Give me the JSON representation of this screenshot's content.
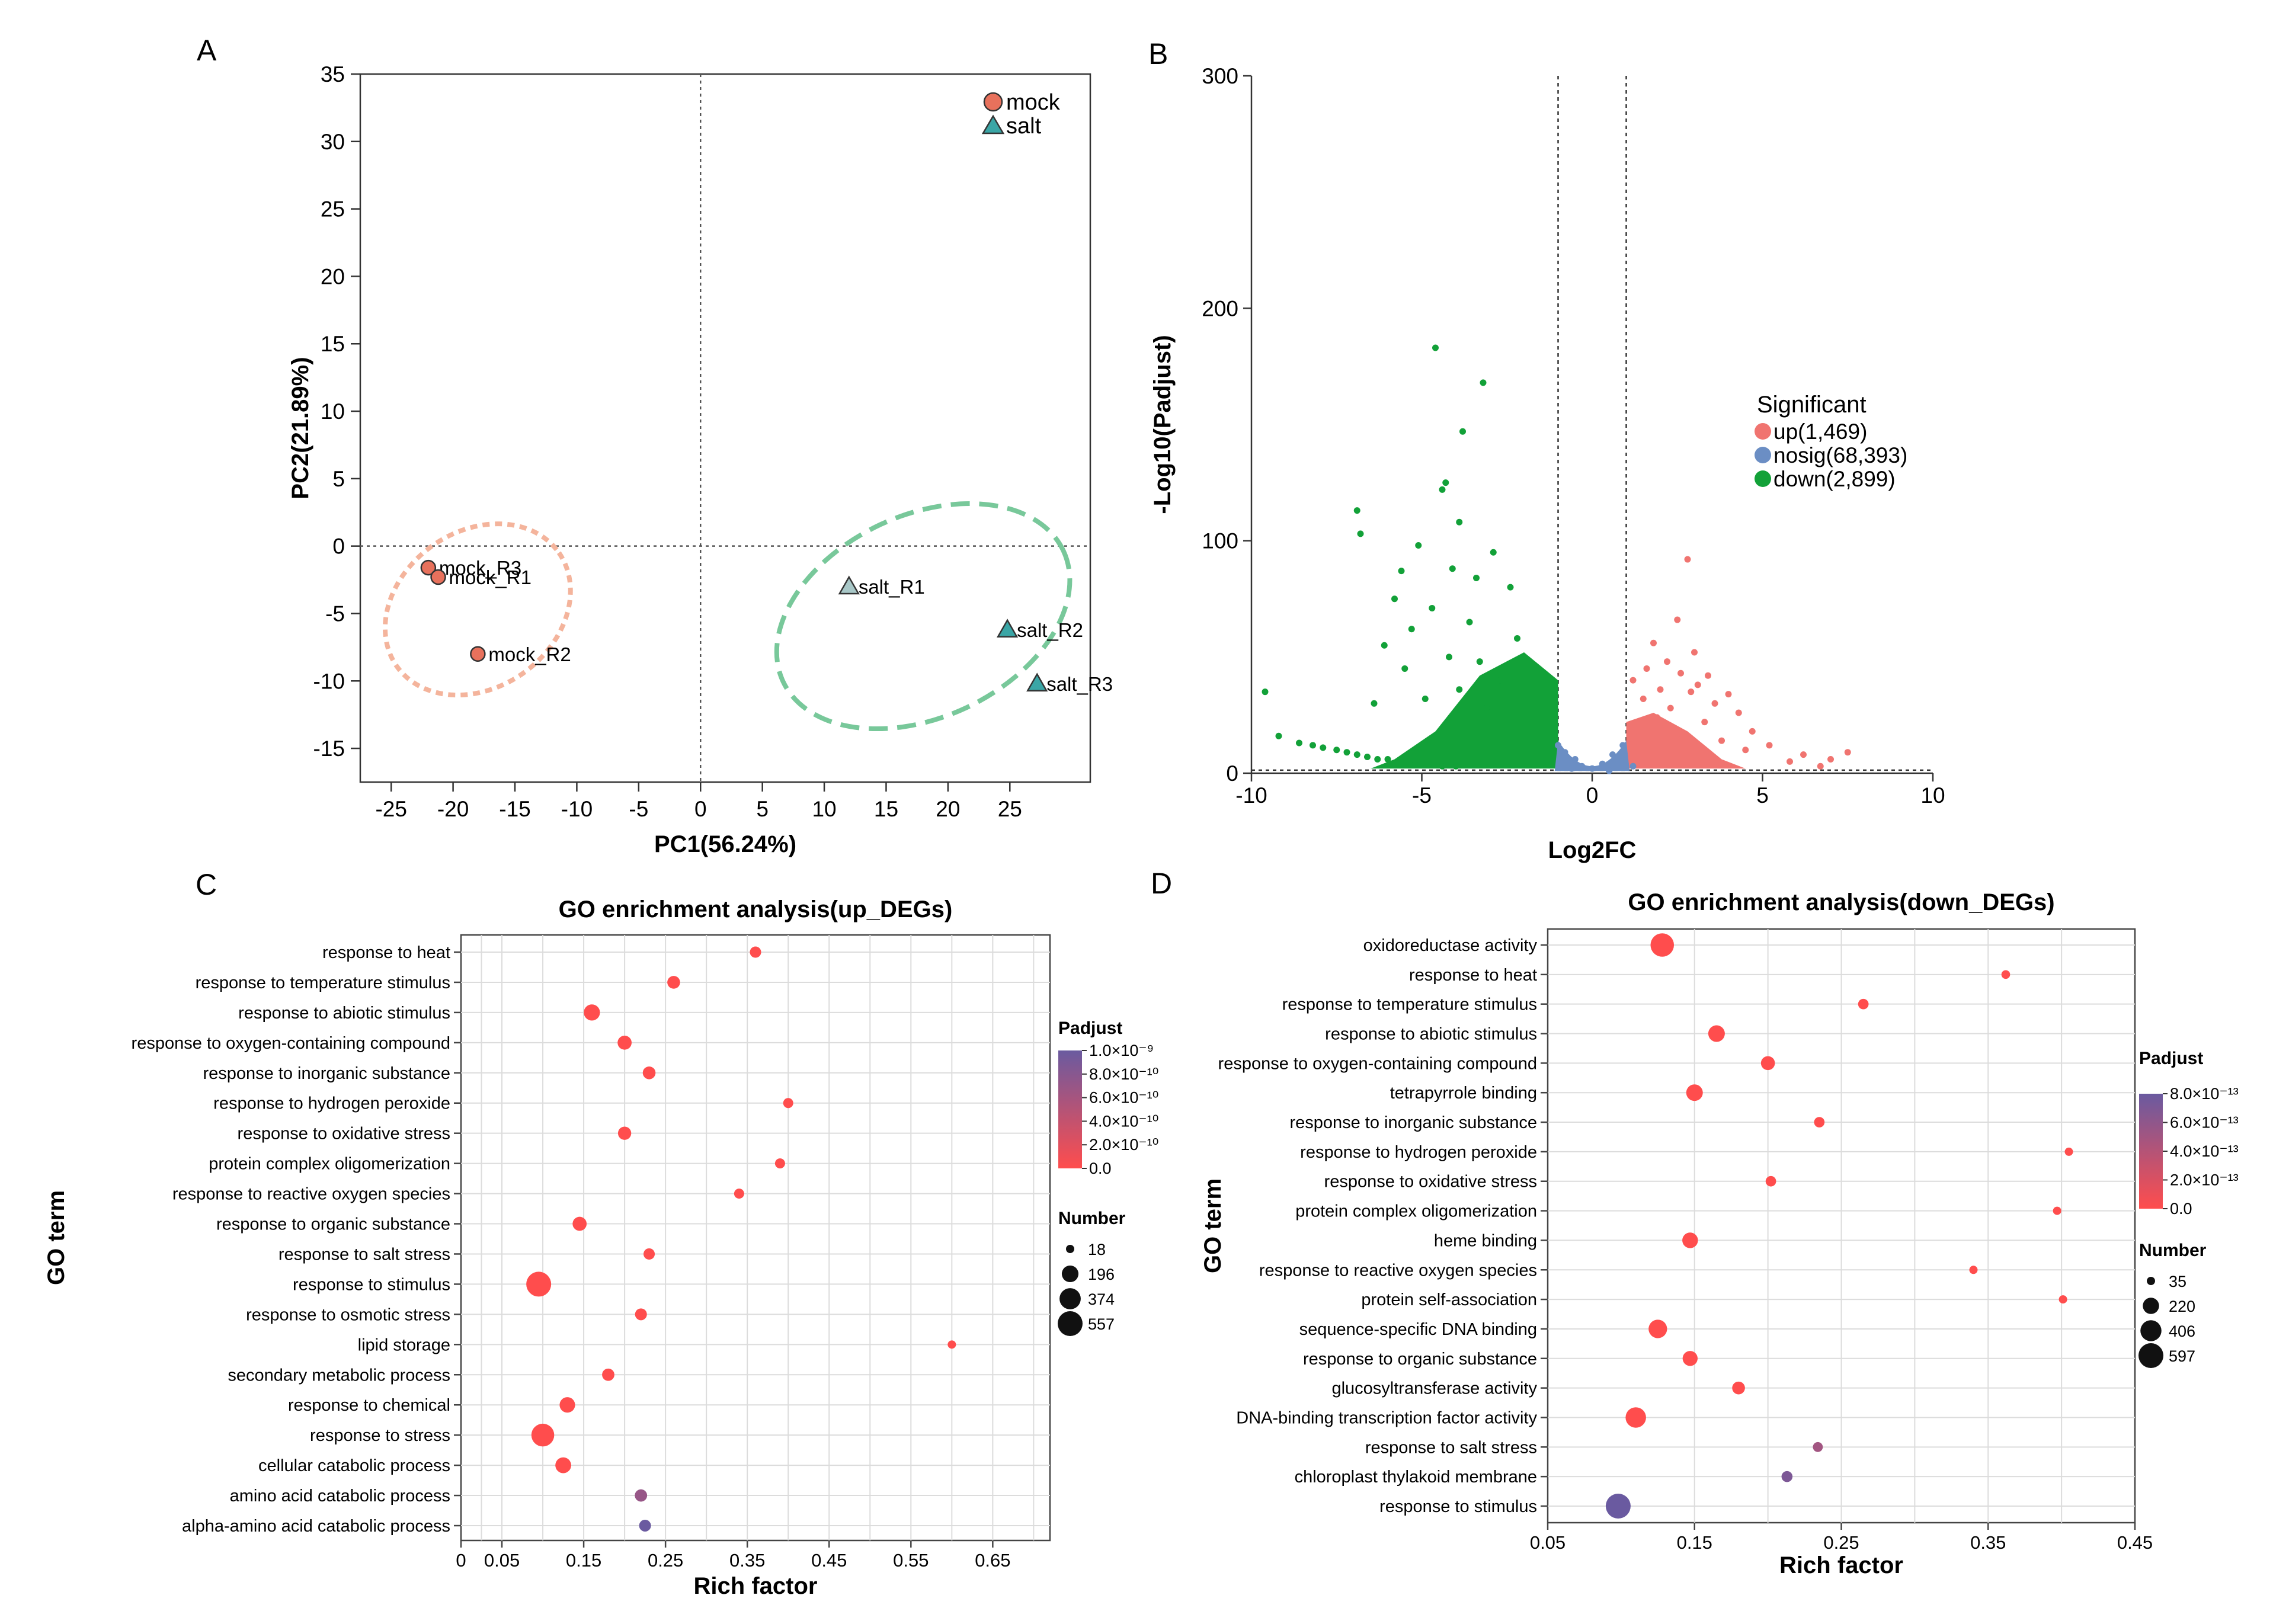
{
  "panel_letters": [
    "A",
    "B",
    "C",
    "D"
  ],
  "chart_data": [
    {
      "panel": "A",
      "type": "scatter",
      "title": "",
      "xlabel": "PC1(56.24%)",
      "ylabel": "PC2(21.89%)",
      "xlim": [
        -27.5,
        31.5
      ],
      "ylim": [
        -17.5,
        35
      ],
      "xticks": [
        -25,
        -20,
        -15,
        -10,
        -5,
        0,
        5,
        10,
        15,
        20,
        25
      ],
      "yticks": [
        35,
        30,
        25,
        20,
        15,
        10,
        5,
        0,
        -5,
        -10,
        -15
      ],
      "reference_lines": {
        "x": 0,
        "y": 0
      },
      "legend": [
        {
          "label": "mock",
          "shape": "circle",
          "color": "#e8715c"
        },
        {
          "label": "salt",
          "shape": "triangle",
          "color": "#3aa6a6"
        }
      ],
      "series": [
        {
          "name": "mock",
          "shape": "circle",
          "color": "#e8715c",
          "points": [
            {
              "label": "mock_R3",
              "x": -22,
              "y": -1.6
            },
            {
              "label": "mock_R1",
              "x": -21.2,
              "y": -2.3
            },
            {
              "label": "mock_R2",
              "x": -18,
              "y": -8
            }
          ]
        },
        {
          "name": "salt",
          "shape": "triangle",
          "color": "#3aa6a6",
          "points": [
            {
              "label": "salt_R1",
              "x": 12,
              "y": -3,
              "fill": "#a9c8c8"
            },
            {
              "label": "salt_R2",
              "x": 24.8,
              "y": -6.2
            },
            {
              "label": "salt_R3",
              "x": 27.2,
              "y": -10.2
            }
          ]
        }
      ],
      "ellipses": [
        {
          "group": "mock",
          "color": "#f4b49c",
          "center": [
            -18,
            -4.7
          ],
          "rx_units": 8,
          "ry_units": 5.8
        },
        {
          "group": "salt",
          "color": "#78c89a",
          "center": [
            18,
            -5.2
          ],
          "rx_units": 12.5,
          "ry_units": 7.5
        }
      ]
    },
    {
      "panel": "B",
      "type": "scatter",
      "title": "",
      "xlabel": "Log2FC",
      "ylabel": "-Log10(Padjust)",
      "xlim": [
        -10,
        10
      ],
      "ylim": [
        0,
        300
      ],
      "xticks": [
        -10,
        -5,
        0,
        5,
        10
      ],
      "yticks": [
        0,
        100,
        200,
        300
      ],
      "thresholds": {
        "log2fc": [
          -1,
          1
        ],
        "padj_line": 1.3
      },
      "legend_title": "Significant",
      "legend": [
        {
          "label": "up(1,469)",
          "color": "#f07470"
        },
        {
          "label": "nosig(68,393)",
          "color": "#6b8ec4"
        },
        {
          "label": "down(2,899)",
          "color": "#12a138"
        }
      ],
      "series": [
        {
          "name": "up",
          "color": "#f07470",
          "points": [
            [
              2.8,
              92
            ],
            [
              2.5,
              66
            ],
            [
              1.8,
              56
            ],
            [
              3,
              52
            ],
            [
              2.2,
              48
            ],
            [
              1.6,
              45
            ],
            [
              2.6,
              43
            ],
            [
              3.4,
              42
            ],
            [
              1.2,
              40
            ],
            [
              3.1,
              38
            ],
            [
              2,
              36
            ],
            [
              2.9,
              35
            ],
            [
              4,
              34
            ],
            [
              1.5,
              32
            ],
            [
              3.6,
              30
            ],
            [
              2.3,
              28
            ],
            [
              4.3,
              26
            ],
            [
              1.9,
              24
            ],
            [
              3.3,
              22
            ],
            [
              4.7,
              18
            ],
            [
              2.6,
              17
            ],
            [
              3.8,
              14
            ],
            [
              5.2,
              12
            ],
            [
              4.5,
              10
            ],
            [
              6.2,
              8
            ],
            [
              5.8,
              5
            ],
            [
              6.7,
              3
            ],
            [
              7.5,
              9
            ],
            [
              7,
              6
            ]
          ]
        },
        {
          "name": "down",
          "color": "#12a138",
          "points": [
            [
              -4.6,
              183
            ],
            [
              -3.2,
              168
            ],
            [
              -3.8,
              147
            ],
            [
              -4.3,
              125
            ],
            [
              -4.4,
              122
            ],
            [
              -6.9,
              113
            ],
            [
              -3.9,
              108
            ],
            [
              -6.8,
              103
            ],
            [
              -5.1,
              98
            ],
            [
              -2.9,
              95
            ],
            [
              -4.1,
              88
            ],
            [
              -5.6,
              87
            ],
            [
              -3.4,
              84
            ],
            [
              -2.4,
              80
            ],
            [
              -5.8,
              75
            ],
            [
              -4.7,
              71
            ],
            [
              -3.6,
              65
            ],
            [
              -5.3,
              62
            ],
            [
              -2.2,
              58
            ],
            [
              -6.1,
              55
            ],
            [
              -4.2,
              50
            ],
            [
              -3.3,
              48
            ],
            [
              -5.5,
              45
            ],
            [
              -2.7,
              40
            ],
            [
              -3.9,
              36
            ],
            [
              -4.9,
              32
            ],
            [
              -6.4,
              30
            ],
            [
              -3.1,
              28
            ],
            [
              -9.6,
              35
            ],
            [
              -9.2,
              16
            ],
            [
              -8.6,
              13
            ],
            [
              -8.2,
              12
            ],
            [
              -7.9,
              11
            ],
            [
              -7.5,
              10
            ],
            [
              -7.2,
              9
            ],
            [
              -6.9,
              8
            ],
            [
              -6.6,
              7
            ],
            [
              -6.3,
              6
            ],
            [
              -6,
              6
            ],
            [
              -5.6,
              5
            ],
            [
              -5.2,
              4
            ],
            [
              -4.8,
              4
            ],
            [
              -4.4,
              3
            ],
            [
              -4,
              3
            ]
          ]
        },
        {
          "name": "nosig",
          "color": "#6b8ec4",
          "points": [
            [
              -1,
              12
            ],
            [
              -0.8,
              9
            ],
            [
              -0.5,
              6
            ],
            [
              -0.3,
              3
            ],
            [
              0,
              2
            ],
            [
              0.3,
              4
            ],
            [
              0.6,
              8
            ],
            [
              0.9,
              12
            ],
            [
              1.2,
              3
            ],
            [
              0.5,
              1
            ],
            [
              -0.6,
              2
            ]
          ]
        }
      ]
    },
    {
      "panel": "C",
      "type": "scatter",
      "title": "GO enrichment analysis(up_DEGs)",
      "xlabel": "Rich factor",
      "ylabel": "GO term",
      "xlim": [
        0,
        0.72
      ],
      "xticks": [
        0,
        0.05,
        0.15,
        0.25,
        0.35,
        0.45,
        0.55,
        0.65
      ],
      "categories": [
        "response to heat",
        "response to temperature stimulus",
        "response to abiotic stimulus",
        "response to oxygen-containing compound",
        "response to inorganic substance",
        "response to hydrogen peroxide",
        "response to oxidative stress",
        "protein complex oligomerization",
        "response to reactive oxygen species",
        "response to organic substance",
        "response to salt stress",
        "response to stimulus",
        "response to osmotic stress",
        "lipid storage",
        "secondary metabolic process",
        "response to chemical",
        "response to stress",
        "cellular catabolic process",
        "amino acid catabolic process",
        "alpha-amino acid catabolic process"
      ],
      "rich_factor": [
        0.36,
        0.26,
        0.16,
        0.2,
        0.23,
        0.4,
        0.2,
        0.39,
        0.34,
        0.145,
        0.23,
        0.095,
        0.22,
        0.6,
        0.18,
        0.13,
        0.1,
        0.125,
        0.22,
        0.225
      ],
      "number": [
        60,
        90,
        180,
        120,
        90,
        40,
        100,
        40,
        40,
        120,
        60,
        557,
        70,
        18,
        80,
        160,
        450,
        170,
        80,
        70
      ],
      "padj": [
        0,
        0,
        0,
        0,
        0,
        0,
        0,
        0,
        0,
        0,
        0,
        0,
        0,
        0,
        0,
        0,
        0,
        0,
        7e-10,
        1e-09
      ],
      "color_legend": {
        "title": "Padjust",
        "labels": [
          "1.0×10⁻⁹",
          "8.0×10⁻¹⁰",
          "6.0×10⁻¹⁰",
          "4.0×10⁻¹⁰",
          "2.0×10⁻¹⁰",
          "0.0"
        ],
        "low": "#ff4d4d",
        "high": "#6a5aa0"
      },
      "size_legend": {
        "title": "Number",
        "values": [
          18,
          196,
          374,
          557
        ]
      }
    },
    {
      "panel": "D",
      "type": "scatter",
      "title": "GO enrichment analysis(down_DEGs)",
      "xlabel": "Rich factor",
      "ylabel": "GO term",
      "xlim": [
        0.05,
        0.45
      ],
      "xticks": [
        0.05,
        0.15,
        0.25,
        0.35,
        0.45
      ],
      "categories": [
        "oxidoreductase activity",
        "response to heat",
        "response to temperature stimulus",
        "response to abiotic stimulus",
        "response to oxygen-containing compound",
        "tetrapyrrole binding",
        "response to inorganic substance",
        "response to hydrogen peroxide",
        "response to oxidative stress",
        "protein complex oligomerization",
        "heme binding",
        "response to reactive oxygen species",
        "protein self-association",
        "sequence-specific DNA binding",
        "response to organic substance",
        "glucosyltransferase activity",
        "DNA-binding transcription factor activity",
        "response to salt stress",
        "chloroplast thylakoid membrane",
        "response to stimulus"
      ],
      "rich_factor": [
        0.128,
        0.362,
        0.265,
        0.165,
        0.2,
        0.15,
        0.235,
        0.405,
        0.202,
        0.397,
        0.147,
        0.34,
        0.401,
        0.125,
        0.147,
        0.18,
        0.11,
        0.234,
        0.213,
        0.098
      ],
      "number": [
        520,
        40,
        70,
        230,
        150,
        230,
        70,
        35,
        70,
        35,
        200,
        35,
        35,
        300,
        180,
        120,
        380,
        60,
        80,
        597
      ],
      "padj": [
        0,
        0,
        0,
        0,
        0,
        0,
        0,
        0,
        0,
        0,
        0,
        0,
        0,
        0,
        0,
        0,
        0,
        5e-13,
        7e-13,
        8e-13
      ],
      "color_legend": {
        "title": "Padjust",
        "labels": [
          "8.0×10⁻¹³",
          "6.0×10⁻¹³",
          "4.0×10⁻¹³",
          "2.0×10⁻¹³",
          "0.0"
        ],
        "low": "#ff4d4d",
        "high": "#6a5aa0"
      },
      "size_legend": {
        "title": "Number",
        "values": [
          35,
          220,
          406,
          597
        ]
      }
    }
  ]
}
